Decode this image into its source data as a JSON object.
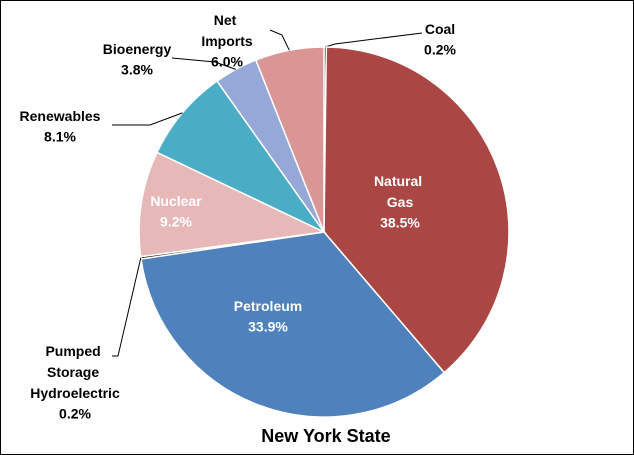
{
  "chart_data": {
    "type": "pie",
    "title": "New York State",
    "categories": [
      "Coal",
      "Natural Gas",
      "Petroleum",
      "Pumped Storage Hydroelectric",
      "Nuclear",
      "Renewables",
      "Bioenergy",
      "Net Imports"
    ],
    "values": [
      0.2,
      38.5,
      33.9,
      0.2,
      9.2,
      8.1,
      3.8,
      6.0
    ],
    "value_labels": [
      "0.2%",
      "38.5%",
      "33.9%",
      "0.2%",
      "9.2%",
      "8.1%",
      "3.8%",
      "6.0%"
    ],
    "colors": [
      "#111111",
      "#aa4644",
      "#4f81bd",
      "#111111",
      "#e6b9b8",
      "#4bacc6",
      "#95a8d8",
      "#d99694"
    ]
  }
}
